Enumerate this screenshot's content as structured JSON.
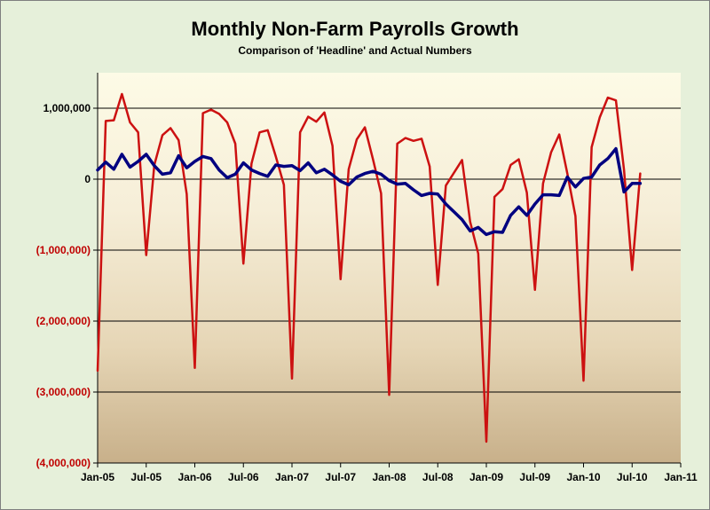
{
  "chart_data": {
    "type": "line",
    "title": "Monthly Non-Farm Payrolls Growth",
    "subtitle": "Comparison of 'Headline' and Actual Numbers",
    "x_tick_labels": [
      "Jan-05",
      "Jul-05",
      "Jan-06",
      "Jul-06",
      "Jan-07",
      "Jul-07",
      "Jan-08",
      "Jul-08",
      "Jan-09",
      "Jul-09",
      "Jan-10",
      "Jul-10",
      "Jan-11"
    ],
    "ylim": [
      -4000000,
      1500000
    ],
    "y_ticks": [
      {
        "value": 1000000,
        "label": "1,000,000",
        "color": "#000000"
      },
      {
        "value": 0,
        "label": "0",
        "color": "#000000"
      },
      {
        "value": -1000000,
        "label": "(1,000,000)",
        "color": "#c00000"
      },
      {
        "value": -2000000,
        "label": "(2,000,000)",
        "color": "#c00000"
      },
      {
        "value": -3000000,
        "label": "(3,000,000)",
        "color": "#c00000"
      },
      {
        "value": -4000000,
        "label": "(4,000,000)",
        "color": "#c00000"
      }
    ],
    "grid": true,
    "series": [
      {
        "color": "#cc1111",
        "values": [
          -2700000,
          820000,
          830000,
          1200000,
          800000,
          660000,
          -1070000,
          200000,
          620000,
          720000,
          550000,
          -210000,
          -2660000,
          930000,
          980000,
          920000,
          800000,
          500000,
          -1190000,
          220000,
          660000,
          690000,
          320000,
          -80000,
          -2810000,
          660000,
          880000,
          810000,
          940000,
          470000,
          -1410000,
          140000,
          560000,
          730000,
          280000,
          -200000,
          -3040000,
          500000,
          580000,
          540000,
          570000,
          180000,
          -1490000,
          -90000,
          90000,
          270000,
          -600000,
          -1050000,
          -3700000,
          -250000,
          -140000,
          200000,
          280000,
          -190000,
          -1560000,
          -60000,
          380000,
          630000,
          80000,
          -520000,
          -2840000,
          450000,
          870000,
          1150000,
          1110000,
          130000,
          -1280000,
          80000
        ],
        "stroke_width": 2.5
      },
      {
        "color": "#000080",
        "values": [
          130000,
          240000,
          140000,
          350000,
          170000,
          250000,
          350000,
          190000,
          70000,
          90000,
          330000,
          160000,
          250000,
          320000,
          290000,
          130000,
          20000,
          70000,
          230000,
          130000,
          80000,
          40000,
          200000,
          180000,
          190000,
          120000,
          230000,
          90000,
          140000,
          60000,
          -30000,
          -80000,
          30000,
          80000,
          110000,
          70000,
          -20000,
          -70000,
          -60000,
          -150000,
          -230000,
          -200000,
          -210000,
          -350000,
          -460000,
          -570000,
          -730000,
          -680000,
          -780000,
          -740000,
          -750000,
          -510000,
          -390000,
          -510000,
          -350000,
          -220000,
          -220000,
          -230000,
          30000,
          -110000,
          10000,
          30000,
          200000,
          290000,
          430000,
          -180000,
          -60000,
          -60000
        ],
        "stroke_width": 3.5
      }
    ]
  }
}
